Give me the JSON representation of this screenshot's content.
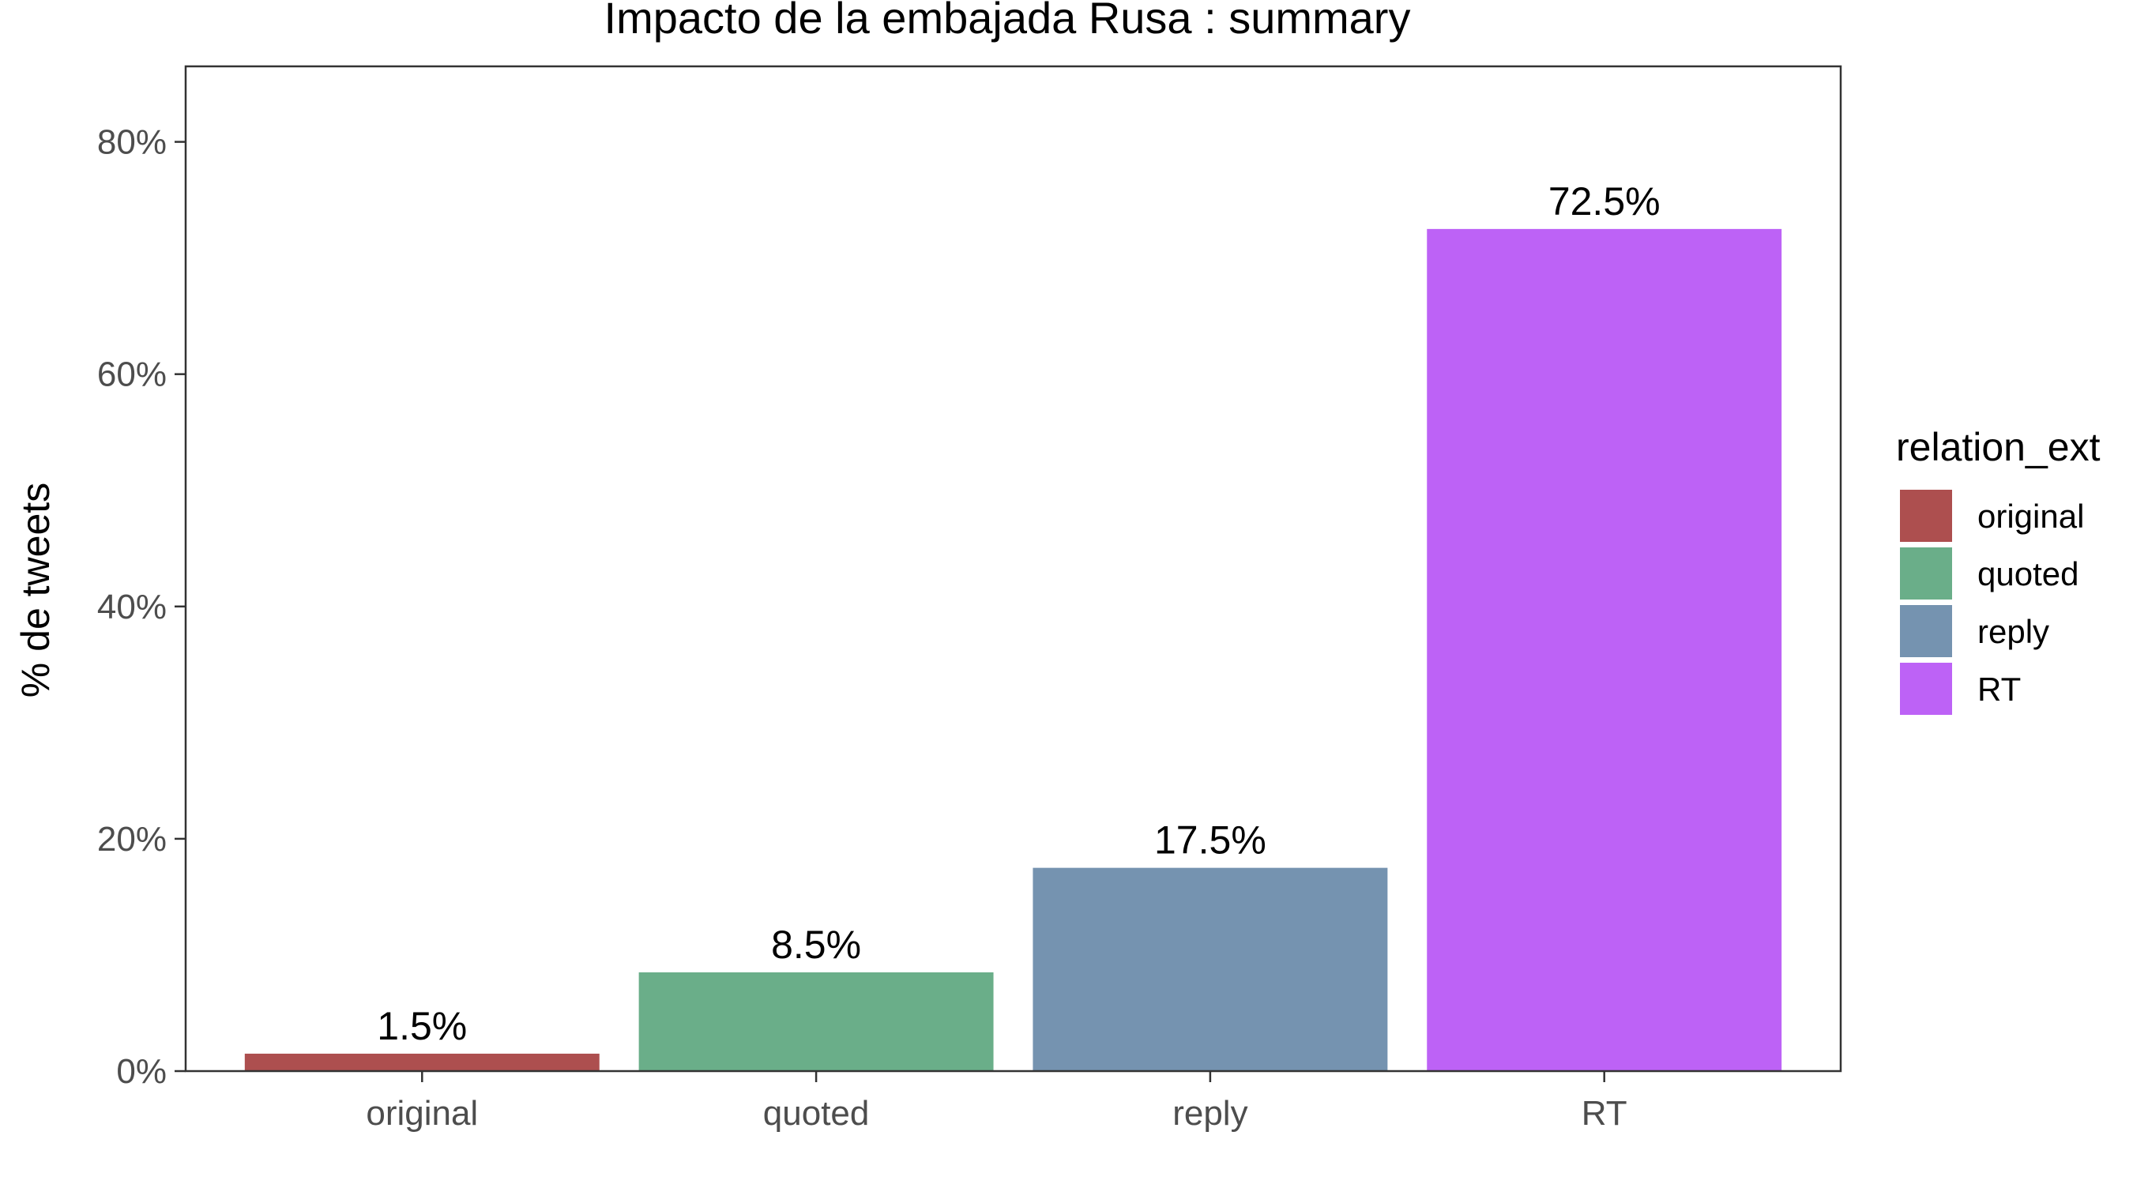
{
  "chart_data": {
    "type": "bar",
    "title": "Impacto de la embajada Rusa : summary",
    "xlabel": "",
    "ylabel": "% de tweets",
    "categories": [
      "original",
      "quoted",
      "reply",
      "RT"
    ],
    "values": [
      1.5,
      8.5,
      17.5,
      72.5
    ],
    "value_labels": [
      "1.5%",
      "8.5%",
      "17.5%",
      "72.5%"
    ],
    "colors": [
      "#ad4f4f",
      "#6aae89",
      "#7593b0",
      "#bd62f6"
    ],
    "ylim": [
      0,
      86.5
    ],
    "yticks": [
      0,
      20,
      40,
      60,
      80
    ],
    "ytick_labels": [
      "0%",
      "20%",
      "40%",
      "60%",
      "80%"
    ],
    "grid": false,
    "legend": {
      "title": "relation_ext",
      "position": "right",
      "entries": [
        "original",
        "quoted",
        "reply",
        "RT"
      ]
    }
  }
}
